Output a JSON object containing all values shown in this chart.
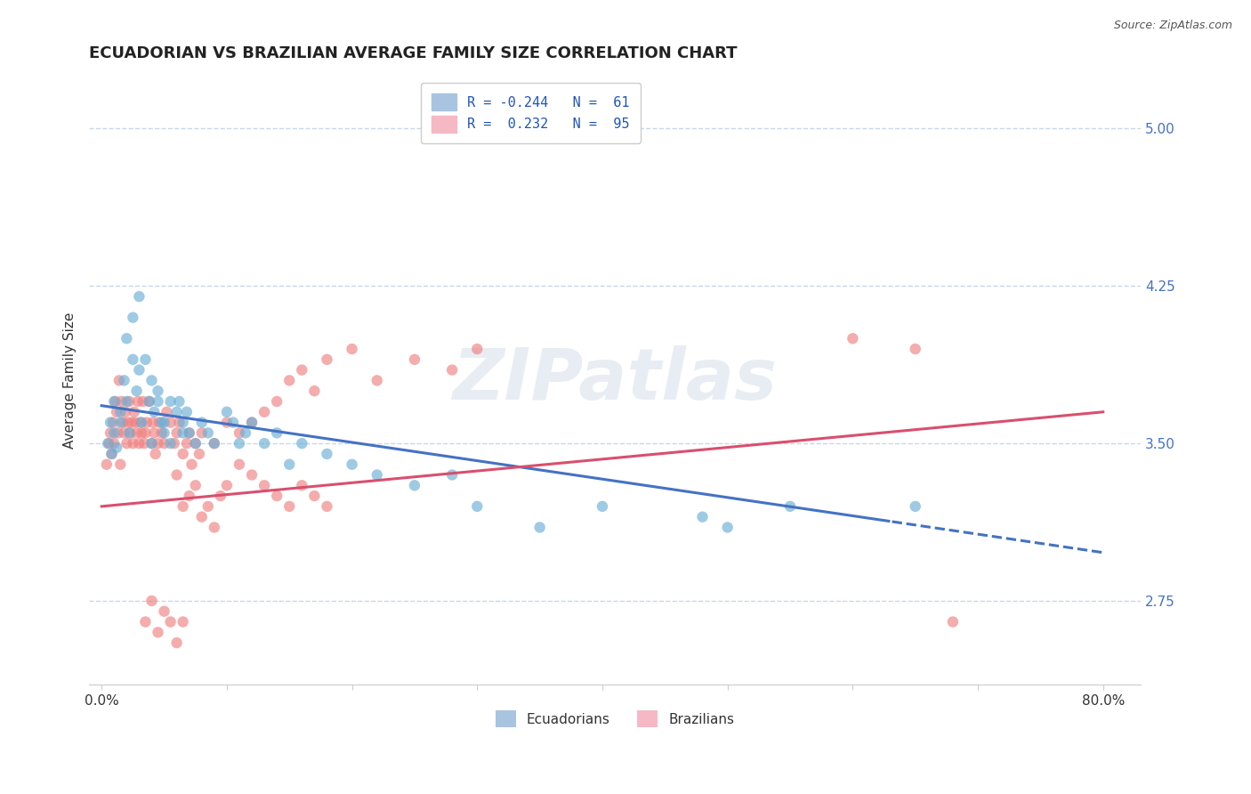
{
  "title": "ECUADORIAN VS BRAZILIAN AVERAGE FAMILY SIZE CORRELATION CHART",
  "source_text": "Source: ZipAtlas.com",
  "ylabel": "Average Family Size",
  "y_ticks_right": [
    2.75,
    3.5,
    4.25,
    5.0
  ],
  "y_lim": [
    2.35,
    5.25
  ],
  "x_lim": [
    -0.01,
    0.83
  ],
  "legend_bottom": [
    "Ecuadorians",
    "Brazilians"
  ],
  "legend_bottom_colors": [
    "#a8c4e0",
    "#f5b8c4"
  ],
  "ecuadorians_color": "#6aaed6",
  "brazilians_color": "#f08080",
  "trend_blue_color": "#4472c4",
  "trend_pink_color": "#d94f6e",
  "watermark": "ZIPatlas",
  "background_color": "#ffffff",
  "grid_color": "#c8d8e8",
  "title_fontsize": 13,
  "axis_label_fontsize": 11,
  "tick_fontsize": 11,
  "right_tick_color": "#4472c4",
  "blue_line": {
    "x0": 0.0,
    "y0": 3.68,
    "x1": 0.8,
    "y1": 2.98,
    "solid_end": 0.63,
    "dash_start": 0.63
  },
  "pink_line": {
    "x0": 0.0,
    "y0": 3.2,
    "x1": 0.8,
    "y1": 3.65
  },
  "ecuadorians_scatter_x": [
    0.005,
    0.007,
    0.008,
    0.01,
    0.01,
    0.012,
    0.015,
    0.015,
    0.018,
    0.02,
    0.02,
    0.022,
    0.025,
    0.025,
    0.028,
    0.03,
    0.03,
    0.032,
    0.035,
    0.038,
    0.04,
    0.04,
    0.042,
    0.045,
    0.045,
    0.048,
    0.05,
    0.05,
    0.055,
    0.055,
    0.06,
    0.062,
    0.065,
    0.065,
    0.068,
    0.07,
    0.075,
    0.08,
    0.085,
    0.09,
    0.1,
    0.105,
    0.11,
    0.115,
    0.12,
    0.13,
    0.14,
    0.15,
    0.16,
    0.18,
    0.2,
    0.22,
    0.25,
    0.28,
    0.3,
    0.35,
    0.4,
    0.48,
    0.5,
    0.55,
    0.65
  ],
  "ecuadorians_scatter_y": [
    3.5,
    3.6,
    3.45,
    3.55,
    3.7,
    3.48,
    3.6,
    3.65,
    3.8,
    3.7,
    4.0,
    3.55,
    3.9,
    4.1,
    3.75,
    3.85,
    4.2,
    3.6,
    3.9,
    3.7,
    3.8,
    3.5,
    3.65,
    3.7,
    3.75,
    3.6,
    3.55,
    3.6,
    3.5,
    3.7,
    3.65,
    3.7,
    3.55,
    3.6,
    3.65,
    3.55,
    3.5,
    3.6,
    3.55,
    3.5,
    3.65,
    3.6,
    3.5,
    3.55,
    3.6,
    3.5,
    3.55,
    3.4,
    3.5,
    3.45,
    3.4,
    3.35,
    3.3,
    3.35,
    3.2,
    3.1,
    3.2,
    3.15,
    3.1,
    3.2,
    3.2
  ],
  "brazilians_scatter_x": [
    0.004,
    0.006,
    0.007,
    0.008,
    0.009,
    0.01,
    0.011,
    0.012,
    0.013,
    0.014,
    0.015,
    0.016,
    0.017,
    0.018,
    0.019,
    0.02,
    0.021,
    0.022,
    0.023,
    0.024,
    0.025,
    0.026,
    0.027,
    0.028,
    0.029,
    0.03,
    0.031,
    0.032,
    0.033,
    0.034,
    0.035,
    0.036,
    0.038,
    0.04,
    0.041,
    0.042,
    0.043,
    0.045,
    0.046,
    0.048,
    0.05,
    0.052,
    0.055,
    0.058,
    0.06,
    0.062,
    0.065,
    0.068,
    0.07,
    0.072,
    0.075,
    0.078,
    0.08,
    0.09,
    0.1,
    0.11,
    0.12,
    0.13,
    0.14,
    0.15,
    0.16,
    0.17,
    0.18,
    0.2,
    0.22,
    0.25,
    0.28,
    0.3,
    0.035,
    0.04,
    0.045,
    0.05,
    0.055,
    0.06,
    0.065,
    0.06,
    0.065,
    0.07,
    0.075,
    0.08,
    0.085,
    0.09,
    0.095,
    0.1,
    0.11,
    0.12,
    0.13,
    0.14,
    0.15,
    0.16,
    0.17,
    0.18,
    0.6,
    0.65,
    0.68
  ],
  "brazilians_scatter_y": [
    3.4,
    3.5,
    3.55,
    3.45,
    3.6,
    3.5,
    3.7,
    3.65,
    3.55,
    3.8,
    3.4,
    3.7,
    3.6,
    3.55,
    3.65,
    3.5,
    3.6,
    3.7,
    3.55,
    3.6,
    3.5,
    3.65,
    3.6,
    3.55,
    3.7,
    3.5,
    3.6,
    3.55,
    3.7,
    3.5,
    3.55,
    3.6,
    3.7,
    3.5,
    3.6,
    3.55,
    3.45,
    3.5,
    3.6,
    3.55,
    3.5,
    3.65,
    3.6,
    3.5,
    3.55,
    3.6,
    3.45,
    3.5,
    3.55,
    3.4,
    3.5,
    3.45,
    3.55,
    3.5,
    3.6,
    3.55,
    3.6,
    3.65,
    3.7,
    3.8,
    3.85,
    3.75,
    3.9,
    3.95,
    3.8,
    3.9,
    3.85,
    3.95,
    2.65,
    2.75,
    2.6,
    2.7,
    2.65,
    2.55,
    2.65,
    3.35,
    3.2,
    3.25,
    3.3,
    3.15,
    3.2,
    3.1,
    3.25,
    3.3,
    3.4,
    3.35,
    3.3,
    3.25,
    3.2,
    3.3,
    3.25,
    3.2,
    4.0,
    3.95,
    2.65
  ]
}
